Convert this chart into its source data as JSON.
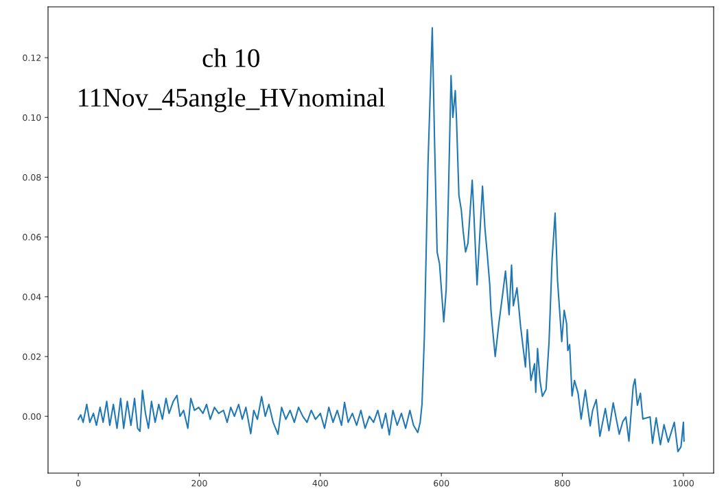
{
  "chart_data": {
    "type": "line",
    "annotations": [
      "ch 10",
      "11Nov_45angle_HVnominal"
    ],
    "x": [
      0,
      4,
      8,
      14,
      19,
      25,
      30,
      36,
      41,
      47,
      52,
      58,
      64,
      70,
      75,
      81,
      87,
      93,
      98,
      102,
      106,
      111,
      116,
      121,
      127,
      133,
      139,
      145,
      150,
      157,
      163,
      168,
      174,
      181,
      186,
      192,
      199,
      206,
      212,
      218,
      225,
      232,
      240,
      246,
      252,
      258,
      265,
      271,
      277,
      285,
      290,
      296,
      303,
      309,
      315,
      322,
      330,
      336,
      343,
      350,
      357,
      364,
      371,
      378,
      385,
      392,
      400,
      407,
      414,
      421,
      428,
      435,
      440,
      446,
      453,
      460,
      467,
      474,
      481,
      488,
      495,
      502,
      508,
      514,
      520,
      527,
      534,
      541,
      548,
      554,
      561,
      565,
      568,
      572,
      578,
      585,
      589,
      593,
      597,
      604,
      608,
      612,
      616,
      619,
      623,
      625,
      629,
      633,
      636,
      640,
      644,
      651,
      653,
      659,
      668,
      672,
      676,
      680,
      682,
      685,
      689,
      695,
      702,
      706,
      712,
      716,
      719,
      725,
      731,
      739,
      742,
      748,
      754,
      756,
      759,
      763,
      767,
      773,
      778,
      783,
      788,
      792,
      799,
      803,
      807,
      809,
      812,
      816,
      820,
      826,
      831,
      838,
      846,
      850,
      856,
      862,
      871,
      877,
      884,
      894,
      900,
      905,
      910,
      917,
      920,
      924,
      929,
      933,
      945,
      949,
      955,
      962,
      968,
      975,
      985,
      991,
      996,
      1000,
      1001
    ],
    "series": [
      {
        "color": "#1f77b4",
        "values": [
          -0.001,
          0.0005,
          -0.002,
          0.004,
          -0.002,
          0.001,
          -0.003,
          0.003,
          -0.002,
          0.005,
          -0.003,
          0.004,
          -0.004,
          0.006,
          -0.004,
          0.005,
          -0.003,
          0.006,
          -0.004,
          -0.005,
          0.0087,
          0.001,
          -0.004,
          0.005,
          -0.002,
          0.004,
          -0.001,
          0.006,
          0.001,
          0.005,
          0.007,
          0.0,
          0.002,
          -0.004,
          0.006,
          0.002,
          0.003,
          0.001,
          0.004,
          -0.001,
          0.003,
          0.001,
          0.002,
          -0.002,
          0.003,
          0.0,
          0.004,
          -0.001,
          0.003,
          -0.0058,
          0.002,
          -0.001,
          0.0066,
          0.0,
          0.004,
          -0.002,
          -0.006,
          0.003,
          -0.001,
          0.002,
          -0.002,
          0.003,
          0.0,
          -0.002,
          0.002,
          -0.001,
          0.001,
          -0.004,
          0.003,
          -0.002,
          0.002,
          -0.003,
          0.0047,
          -0.002,
          0.001,
          -0.003,
          0.002,
          -0.004,
          0.0,
          -0.002,
          0.002,
          -0.004,
          0.001,
          -0.0062,
          0.002,
          -0.003,
          0.001,
          -0.004,
          0.002,
          -0.003,
          -0.0054,
          -0.002,
          0.004,
          0.027,
          0.085,
          0.13,
          0.09,
          0.055,
          0.051,
          0.0316,
          0.0425,
          0.077,
          0.114,
          0.1,
          0.109,
          0.0996,
          0.074,
          0.069,
          0.062,
          0.055,
          0.058,
          0.079,
          0.071,
          0.044,
          0.077,
          0.063,
          0.054,
          0.044,
          0.0355,
          0.0285,
          0.02,
          0.031,
          0.042,
          0.0486,
          0.034,
          0.0506,
          0.037,
          0.043,
          0.03,
          0.0165,
          0.029,
          0.012,
          0.0176,
          0.008,
          0.0227,
          0.012,
          0.0067,
          0.009,
          0.025,
          0.0525,
          0.068,
          0.0455,
          0.025,
          0.0355,
          0.031,
          0.022,
          0.024,
          0.0068,
          0.012,
          0.0077,
          -0.0009,
          0.0088,
          -0.0032,
          0.002,
          0.0056,
          -0.0067,
          0.0026,
          -0.0048,
          0.0045,
          -0.006,
          -0.0017,
          -0.0002,
          -0.0083,
          0.01,
          0.0125,
          0.0037,
          0.0077,
          -0.0009,
          -0.0002,
          -0.009,
          -0.0005,
          -0.0095,
          -0.0028,
          -0.0086,
          -0.002,
          -0.0118,
          -0.0102,
          -0.002,
          -0.0083
        ]
      }
    ],
    "xlim": [
      -50,
      1050
    ],
    "ylim": [
      -0.019,
      0.137
    ],
    "xticks": [
      0,
      200,
      400,
      600,
      800,
      1000
    ],
    "yticks": [
      {
        "value": 0,
        "label": "0.00"
      },
      {
        "value": 0.02,
        "label": "0.02"
      },
      {
        "value": 0.04,
        "label": "0.04"
      },
      {
        "value": 0.06,
        "label": "0.06"
      },
      {
        "value": 0.08,
        "label": "0.08"
      },
      {
        "value": 0.1,
        "label": "0.10"
      },
      {
        "value": 0.12,
        "label": "0.12"
      }
    ],
    "grid": false,
    "marker": "none",
    "line_style": "solid"
  }
}
